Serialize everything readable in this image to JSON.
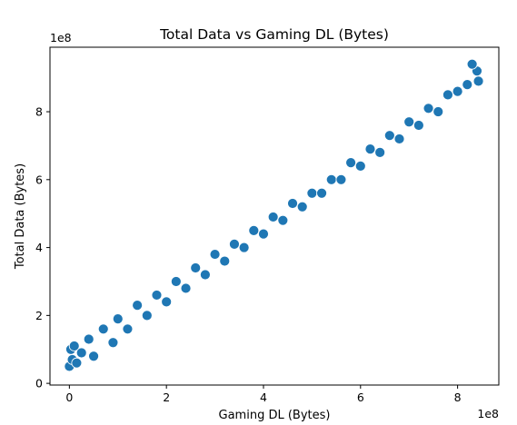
{
  "chart_data": {
    "type": "scatter",
    "title": "Total Data vs Gaming DL (Bytes)",
    "xlabel": "Gaming DL (Bytes)",
    "ylabel": "Total Data (Bytes)",
    "x_offset_label": "1e8",
    "y_offset_label": "1e8",
    "xlim": [
      -40000000,
      885000000
    ],
    "ylim": [
      -5000000,
      990000000
    ],
    "x_ticks": [
      0,
      200000000,
      400000000,
      600000000,
      800000000
    ],
    "y_ticks": [
      0,
      200000000,
      400000000,
      600000000,
      800000000
    ],
    "x_tick_labels": [
      "0",
      "2",
      "4",
      "6",
      "8"
    ],
    "y_tick_labels": [
      "0",
      "2",
      "4",
      "6",
      "8"
    ],
    "grid": false,
    "legend": "none",
    "marker_color": "#1f77b4",
    "marker_edge": "#ffffff",
    "series": [
      {
        "points": [
          [
            0,
            50000000
          ],
          [
            3000000,
            100000000
          ],
          [
            6000000,
            70000000
          ],
          [
            10000000,
            110000000
          ],
          [
            15000000,
            60000000
          ],
          [
            25000000,
            90000000
          ],
          [
            40000000,
            130000000
          ],
          [
            50000000,
            80000000
          ],
          [
            70000000,
            160000000
          ],
          [
            90000000,
            120000000
          ],
          [
            100000000,
            190000000
          ],
          [
            120000000,
            160000000
          ],
          [
            140000000,
            230000000
          ],
          [
            160000000,
            200000000
          ],
          [
            180000000,
            260000000
          ],
          [
            200000000,
            240000000
          ],
          [
            220000000,
            300000000
          ],
          [
            240000000,
            280000000
          ],
          [
            260000000,
            340000000
          ],
          [
            280000000,
            320000000
          ],
          [
            300000000,
            380000000
          ],
          [
            320000000,
            360000000
          ],
          [
            340000000,
            410000000
          ],
          [
            360000000,
            400000000
          ],
          [
            380000000,
            450000000
          ],
          [
            400000000,
            440000000
          ],
          [
            420000000,
            490000000
          ],
          [
            440000000,
            480000000
          ],
          [
            460000000,
            530000000
          ],
          [
            480000000,
            520000000
          ],
          [
            500000000,
            560000000
          ],
          [
            520000000,
            560000000
          ],
          [
            540000000,
            600000000
          ],
          [
            560000000,
            600000000
          ],
          [
            580000000,
            650000000
          ],
          [
            600000000,
            640000000
          ],
          [
            620000000,
            690000000
          ],
          [
            640000000,
            680000000
          ],
          [
            660000000,
            730000000
          ],
          [
            680000000,
            720000000
          ],
          [
            700000000,
            770000000
          ],
          [
            720000000,
            760000000
          ],
          [
            740000000,
            810000000
          ],
          [
            760000000,
            800000000
          ],
          [
            780000000,
            850000000
          ],
          [
            800000000,
            860000000
          ],
          [
            820000000,
            880000000
          ],
          [
            840000000,
            920000000
          ],
          [
            843000000,
            890000000
          ],
          [
            830000000,
            940000000
          ]
        ]
      }
    ]
  }
}
